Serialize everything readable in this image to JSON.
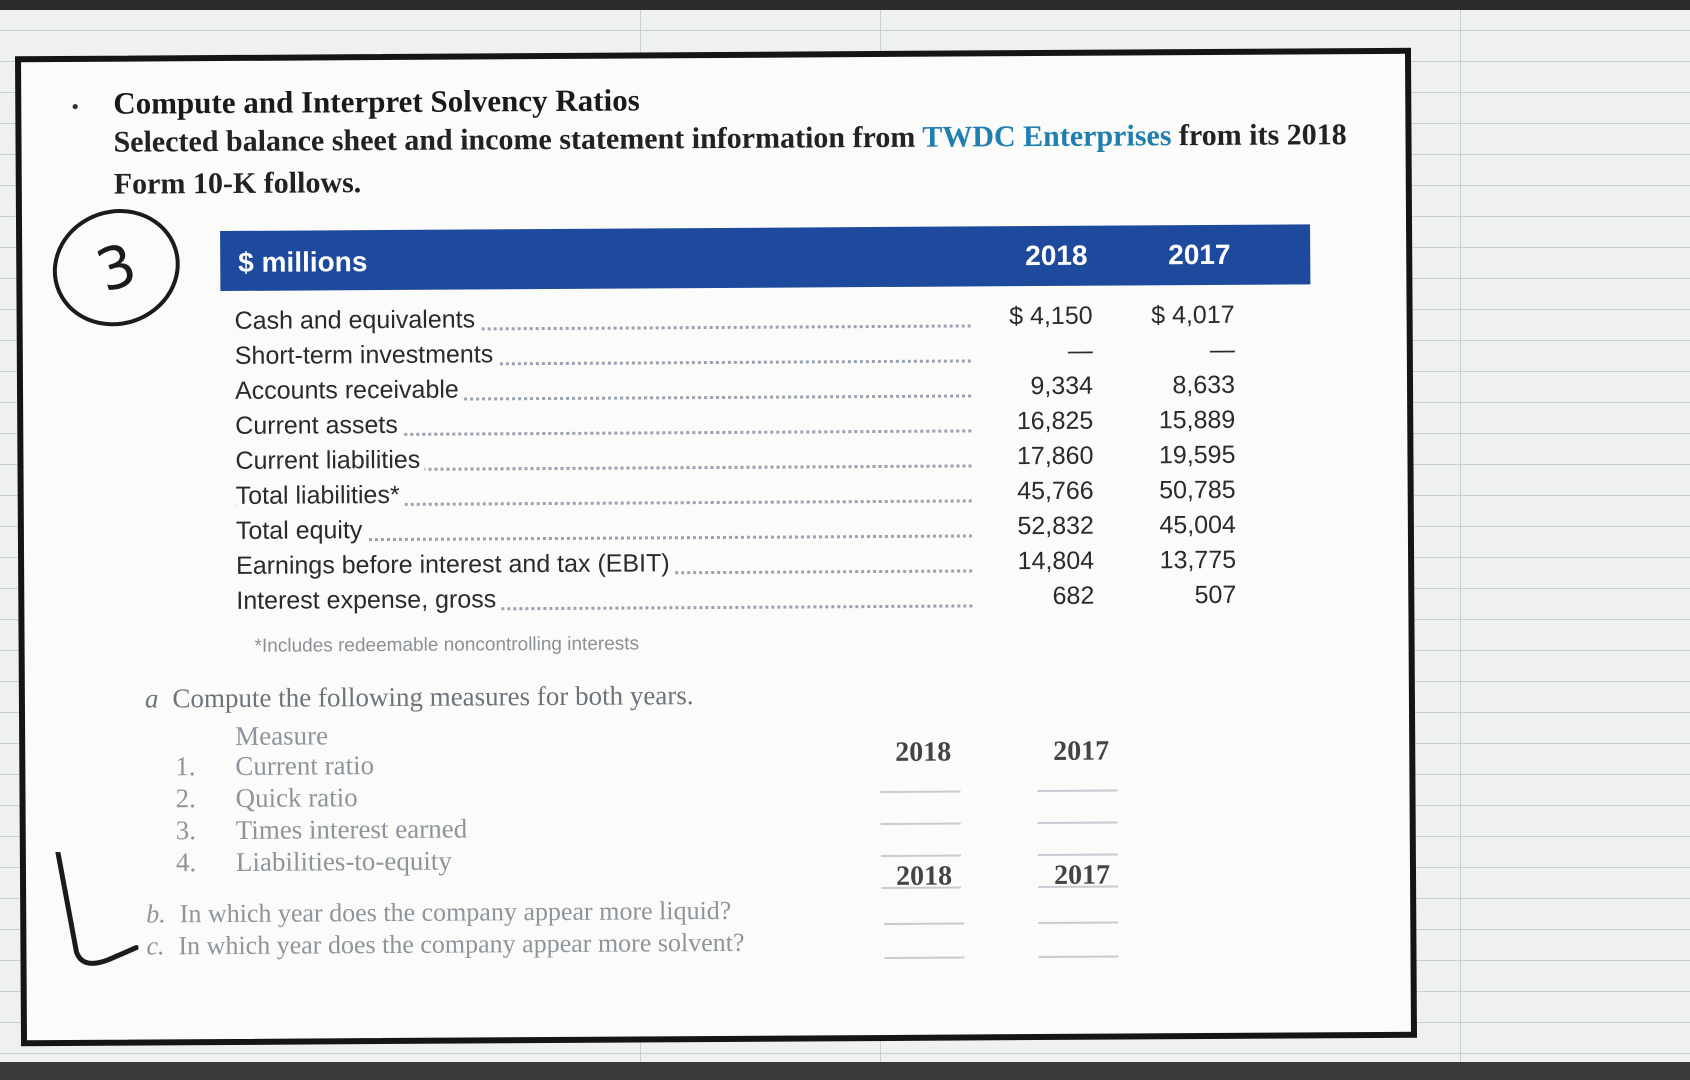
{
  "document": {
    "title": "Compute and Interpret Solvency Ratios",
    "intro_prefix": "Selected balance sheet and income statement information from ",
    "company": "TWDC Enterprises",
    "intro_suffix": " from its 2018 Form 10-K follows.",
    "annotation": "3"
  },
  "financials": {
    "header_label": "$ millions",
    "years": [
      "2018",
      "2017"
    ],
    "rows": [
      {
        "name": "Cash and equivalents",
        "v2018": "$ 4,150",
        "v2017": "$ 4,017"
      },
      {
        "name": "Short-term investments",
        "v2018": "—",
        "v2017": "—"
      },
      {
        "name": "Accounts receivable",
        "v2018": "9,334",
        "v2017": "8,633"
      },
      {
        "name": "Current assets",
        "v2018": "16,825",
        "v2017": "15,889"
      },
      {
        "name": "Current liabilities",
        "v2018": "17,860",
        "v2017": "19,595"
      },
      {
        "name": "Total liabilities*",
        "v2018": "45,766",
        "v2017": "50,785"
      },
      {
        "name": "Total equity",
        "v2018": "52,832",
        "v2017": "45,004"
      },
      {
        "name": "Earnings before interest and tax (EBIT)",
        "v2018": "14,804",
        "v2017": "13,775"
      },
      {
        "name": "Interest expense, gross",
        "v2018": "682",
        "v2017": "507"
      }
    ],
    "footnote": "*Includes redeemable noncontrolling interests"
  },
  "question_a": {
    "letter": "a",
    "text": "Compute the following measures for both years.",
    "measure_header": "Measure",
    "years": [
      "2018",
      "2017"
    ],
    "measures": [
      {
        "num": "1.",
        "name": "Current ratio"
      },
      {
        "num": "2.",
        "name": "Quick ratio"
      },
      {
        "num": "3.",
        "name": "Times interest earned"
      },
      {
        "num": "4.",
        "name": "Liabilities-to-equity"
      }
    ]
  },
  "question_bc": {
    "years": [
      "2018",
      "2017"
    ],
    "b_letter": "b.",
    "b_text": "In which year does the company appear more liquid?",
    "c_letter": "c.",
    "c_text": "In which year does the company appear more solvent?"
  }
}
